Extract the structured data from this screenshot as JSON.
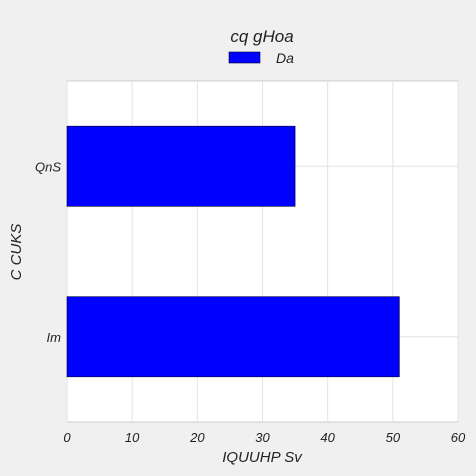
{
  "chart_data": {
    "type": "bar",
    "orientation": "horizontal",
    "title": "cq gHoa",
    "xlabel": "IQUUHP Sv",
    "ylabel": "C  CUKS",
    "categories": [
      "Im",
      "QnS"
    ],
    "series": [
      {
        "name": "Da",
        "values": [
          51,
          35
        ],
        "color": "#0000ff"
      }
    ],
    "xlim": [
      0,
      60
    ],
    "xticks": [
      0,
      10,
      20,
      30,
      40,
      50,
      60
    ],
    "grid": true,
    "legend_position": "top-center"
  }
}
